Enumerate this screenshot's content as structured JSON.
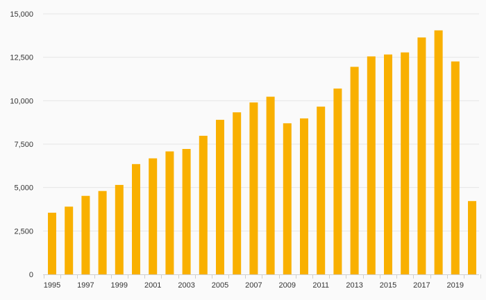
{
  "chart_data": {
    "type": "bar",
    "title": "",
    "xlabel": "",
    "ylabel": "",
    "grid": true,
    "legend": "none",
    "color": "#f9b000",
    "ylim": [
      0,
      15000
    ],
    "yticks": [
      0,
      2500,
      5000,
      7500,
      10000,
      12500,
      15000
    ],
    "ytick_labels": [
      "0",
      "2,500",
      "5,000",
      "7,500",
      "10,000",
      "12,500",
      "15,000"
    ],
    "xtick_labels": [
      "1995",
      "1997",
      "1999",
      "2001",
      "2003",
      "2005",
      "2007",
      "2009",
      "2011",
      "2013",
      "2015",
      "2017",
      "2019"
    ],
    "categories": [
      "1995",
      "1996",
      "1997",
      "1998",
      "1999",
      "2000",
      "2001",
      "2002",
      "2003",
      "2004",
      "2005",
      "2006",
      "2007",
      "2008",
      "2009",
      "2010",
      "2011",
      "2012",
      "2013",
      "2014",
      "2015",
      "2016",
      "2017",
      "2018",
      "2019",
      "2020"
    ],
    "values": [
      3550,
      3900,
      4520,
      4800,
      5150,
      6350,
      6680,
      7080,
      7220,
      7980,
      8900,
      9330,
      9900,
      10230,
      8700,
      8980,
      9660,
      10700,
      11950,
      12550,
      12660,
      12780,
      13640,
      14050,
      12260,
      4220
    ]
  }
}
